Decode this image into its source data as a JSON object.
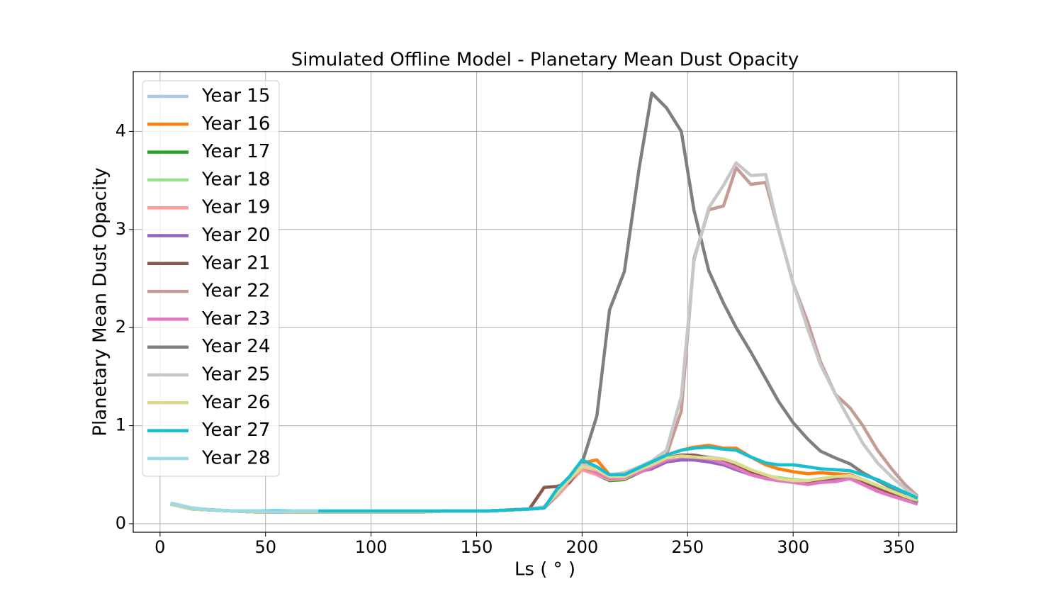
{
  "chart_data": {
    "type": "line",
    "title": "Simulated Offline Model - Planetary Mean Dust Opacity",
    "x_label": "Ls ( ° )",
    "y_label": "Planetary Mean Dust Opacity",
    "xlim": [
      -12.7,
      377.5
    ],
    "ylim": [
      -0.087,
      4.61
    ],
    "xticks": [
      0,
      50,
      100,
      150,
      200,
      250,
      300,
      350
    ],
    "yticks": [
      0,
      1,
      2,
      3,
      4
    ],
    "grid": true,
    "legend": "upper-left",
    "x": [
      5,
      15,
      25,
      35,
      45,
      55,
      65,
      75,
      85,
      95,
      105,
      115,
      125,
      135,
      145,
      155,
      165,
      175,
      182,
      188,
      194,
      200,
      207,
      213,
      220,
      227,
      233,
      240,
      247,
      253,
      260,
      267,
      273,
      280,
      287,
      293,
      300,
      307,
      313,
      320,
      327,
      333,
      340,
      347,
      353,
      359
    ],
    "series": [
      {
        "name": "Year 15",
        "color": "#aec7e8",
        "values": [
          0.2,
          0.15,
          0.14,
          0.13,
          0.12,
          0.12,
          0.12,
          0.12,
          0.12,
          0.12,
          0.12,
          0.12,
          0.12,
          0.13,
          0.13,
          0.13,
          0.14,
          0.15,
          0.17,
          0.3,
          0.45,
          0.6,
          0.55,
          0.47,
          0.48,
          0.55,
          0.6,
          0.67,
          0.7,
          0.7,
          0.68,
          0.66,
          0.6,
          0.53,
          0.48,
          0.46,
          0.44,
          0.43,
          0.45,
          0.47,
          0.48,
          0.44,
          0.38,
          0.32,
          0.27,
          0.23
        ]
      },
      {
        "name": "Year 16",
        "color": "#ff7f0e",
        "values": [
          0.21,
          0.16,
          0.14,
          0.13,
          0.12,
          0.12,
          0.12,
          0.12,
          0.12,
          0.12,
          0.12,
          0.12,
          0.12,
          0.13,
          0.13,
          0.13,
          0.14,
          0.15,
          0.17,
          0.32,
          0.45,
          0.62,
          0.65,
          0.5,
          0.5,
          0.57,
          0.63,
          0.7,
          0.75,
          0.78,
          0.8,
          0.77,
          0.77,
          0.68,
          0.6,
          0.56,
          0.53,
          0.51,
          0.52,
          0.51,
          0.5,
          0.45,
          0.38,
          0.32,
          0.26,
          0.21
        ]
      },
      {
        "name": "Year 17",
        "color": "#2ca02c",
        "values": [
          0.2,
          0.15,
          0.14,
          0.13,
          0.12,
          0.12,
          0.12,
          0.12,
          0.12,
          0.12,
          0.12,
          0.12,
          0.12,
          0.13,
          0.13,
          0.13,
          0.14,
          0.15,
          0.16,
          0.28,
          0.42,
          0.58,
          0.5,
          0.44,
          0.45,
          0.52,
          0.58,
          0.65,
          0.68,
          0.68,
          0.66,
          0.63,
          0.58,
          0.52,
          0.48,
          0.46,
          0.44,
          0.43,
          0.45,
          0.47,
          0.47,
          0.42,
          0.36,
          0.3,
          0.26,
          0.21
        ]
      },
      {
        "name": "Year 18",
        "color": "#98df8a",
        "values": [
          0.2,
          0.15,
          0.14,
          0.13,
          0.12,
          0.12,
          0.12,
          0.12,
          0.12,
          0.12,
          0.12,
          0.12,
          0.12,
          0.13,
          0.13,
          0.13,
          0.14,
          0.15,
          0.16,
          0.29,
          0.43,
          0.59,
          0.51,
          0.45,
          0.46,
          0.53,
          0.59,
          0.66,
          0.69,
          0.69,
          0.67,
          0.64,
          0.59,
          0.53,
          0.49,
          0.47,
          0.45,
          0.44,
          0.46,
          0.48,
          0.48,
          0.43,
          0.37,
          0.31,
          0.27,
          0.22
        ]
      },
      {
        "name": "Year 19",
        "color": "#ff9896",
        "values": [
          0.2,
          0.15,
          0.14,
          0.13,
          0.12,
          0.12,
          0.12,
          0.12,
          0.12,
          0.12,
          0.12,
          0.12,
          0.12,
          0.13,
          0.13,
          0.13,
          0.14,
          0.15,
          0.16,
          0.28,
          0.42,
          0.55,
          0.5,
          0.45,
          0.46,
          0.53,
          0.58,
          0.64,
          0.68,
          0.68,
          0.66,
          0.63,
          0.58,
          0.52,
          0.47,
          0.45,
          0.43,
          0.41,
          0.43,
          0.45,
          0.46,
          0.4,
          0.34,
          0.29,
          0.25,
          0.22
        ]
      },
      {
        "name": "Year 20",
        "color": "#9467bd",
        "values": [
          0.2,
          0.15,
          0.14,
          0.13,
          0.12,
          0.12,
          0.12,
          0.12,
          0.12,
          0.12,
          0.12,
          0.12,
          0.12,
          0.13,
          0.13,
          0.13,
          0.14,
          0.15,
          0.16,
          0.3,
          0.45,
          0.6,
          0.52,
          0.46,
          0.48,
          0.53,
          0.56,
          0.63,
          0.65,
          0.65,
          0.63,
          0.6,
          0.55,
          0.5,
          0.46,
          0.44,
          0.43,
          0.42,
          0.44,
          0.46,
          0.47,
          0.43,
          0.37,
          0.31,
          0.26,
          0.22
        ]
      },
      {
        "name": "Year 21",
        "color": "#8c564b",
        "values": [
          0.2,
          0.15,
          0.14,
          0.13,
          0.12,
          0.12,
          0.12,
          0.12,
          0.12,
          0.12,
          0.12,
          0.12,
          0.12,
          0.13,
          0.13,
          0.13,
          0.14,
          0.15,
          0.37,
          0.38,
          0.42,
          0.6,
          0.55,
          0.48,
          0.48,
          0.55,
          0.6,
          0.67,
          0.7,
          0.7,
          0.67,
          0.64,
          0.58,
          0.52,
          0.48,
          0.46,
          0.44,
          0.43,
          0.45,
          0.47,
          0.47,
          0.43,
          0.37,
          0.31,
          0.26,
          0.21
        ]
      },
      {
        "name": "Year 22",
        "color": "#c49c94",
        "values": [
          0.2,
          0.15,
          0.14,
          0.13,
          0.12,
          0.12,
          0.12,
          0.12,
          0.12,
          0.12,
          0.12,
          0.12,
          0.12,
          0.13,
          0.13,
          0.13,
          0.14,
          0.15,
          0.17,
          0.3,
          0.45,
          0.6,
          0.55,
          0.5,
          0.5,
          0.55,
          0.62,
          0.7,
          1.15,
          2.7,
          3.2,
          3.24,
          3.63,
          3.46,
          3.48,
          3.0,
          2.45,
          2.05,
          1.65,
          1.32,
          1.18,
          1.0,
          0.75,
          0.55,
          0.4,
          0.28
        ]
      },
      {
        "name": "Year 23",
        "color": "#e377c2",
        "values": [
          0.2,
          0.15,
          0.14,
          0.13,
          0.12,
          0.12,
          0.12,
          0.12,
          0.12,
          0.12,
          0.12,
          0.12,
          0.12,
          0.13,
          0.13,
          0.13,
          0.14,
          0.15,
          0.17,
          0.3,
          0.44,
          0.58,
          0.52,
          0.46,
          0.47,
          0.52,
          0.58,
          0.65,
          0.68,
          0.68,
          0.66,
          0.62,
          0.57,
          0.5,
          0.46,
          0.44,
          0.42,
          0.4,
          0.42,
          0.43,
          0.46,
          0.4,
          0.33,
          0.28,
          0.24,
          0.2
        ]
      },
      {
        "name": "Year 24",
        "color": "#7f7f7f",
        "values": [
          0.2,
          0.15,
          0.14,
          0.13,
          0.12,
          0.12,
          0.12,
          0.12,
          0.12,
          0.12,
          0.12,
          0.12,
          0.12,
          0.13,
          0.13,
          0.13,
          0.14,
          0.15,
          0.16,
          0.3,
          0.45,
          0.62,
          1.1,
          2.18,
          2.57,
          3.62,
          4.39,
          4.24,
          4.0,
          3.2,
          2.58,
          2.25,
          2.0,
          1.75,
          1.48,
          1.25,
          1.03,
          0.86,
          0.74,
          0.67,
          0.61,
          0.52,
          0.44,
          0.36,
          0.29,
          0.22
        ]
      },
      {
        "name": "Year 25",
        "color": "#c7c7c7",
        "values": [
          0.2,
          0.15,
          0.14,
          0.13,
          0.12,
          0.12,
          0.12,
          0.12,
          0.12,
          0.12,
          0.12,
          0.12,
          0.12,
          0.13,
          0.13,
          0.13,
          0.14,
          0.15,
          0.17,
          0.3,
          0.45,
          0.6,
          0.57,
          0.5,
          0.52,
          0.58,
          0.64,
          0.75,
          1.3,
          2.68,
          3.22,
          3.45,
          3.68,
          3.55,
          3.56,
          3.0,
          2.45,
          1.98,
          1.62,
          1.32,
          1.05,
          0.82,
          0.62,
          0.47,
          0.36,
          0.27
        ]
      },
      {
        "name": "Year 26",
        "color": "#dbdb8d",
        "values": [
          0.2,
          0.15,
          0.14,
          0.13,
          0.12,
          0.12,
          0.12,
          0.12,
          0.12,
          0.12,
          0.12,
          0.12,
          0.12,
          0.13,
          0.13,
          0.13,
          0.14,
          0.15,
          0.16,
          0.32,
          0.45,
          0.58,
          0.55,
          0.48,
          0.48,
          0.55,
          0.6,
          0.67,
          0.69,
          0.68,
          0.67,
          0.66,
          0.62,
          0.55,
          0.5,
          0.46,
          0.44,
          0.44,
          0.46,
          0.48,
          0.49,
          0.45,
          0.39,
          0.33,
          0.28,
          0.24
        ]
      },
      {
        "name": "Year 27",
        "color": "#17becf",
        "values": [
          0.21,
          0.16,
          0.14,
          0.13,
          0.13,
          0.13,
          0.13,
          0.13,
          0.13,
          0.13,
          0.13,
          0.13,
          0.13,
          0.13,
          0.13,
          0.13,
          0.14,
          0.15,
          0.16,
          0.35,
          0.48,
          0.65,
          0.58,
          0.5,
          0.5,
          0.57,
          0.63,
          0.7,
          0.75,
          0.77,
          0.78,
          0.76,
          0.75,
          0.68,
          0.62,
          0.6,
          0.6,
          0.58,
          0.56,
          0.55,
          0.54,
          0.5,
          0.45,
          0.38,
          0.32,
          0.26
        ]
      },
      {
        "name": "Year 28",
        "color": "#9edae5",
        "values": [
          0.21,
          0.16,
          0.14,
          0.13,
          0.13,
          0.12,
          0.13,
          0.13,
          null,
          null,
          null,
          null,
          null,
          null,
          null,
          null,
          null,
          null,
          null,
          null,
          null,
          null,
          null,
          null,
          null,
          null,
          null,
          null,
          null,
          null,
          null,
          null,
          null,
          null,
          null,
          null,
          null,
          null,
          null,
          null,
          null,
          null,
          null,
          null,
          null,
          null
        ]
      }
    ]
  }
}
